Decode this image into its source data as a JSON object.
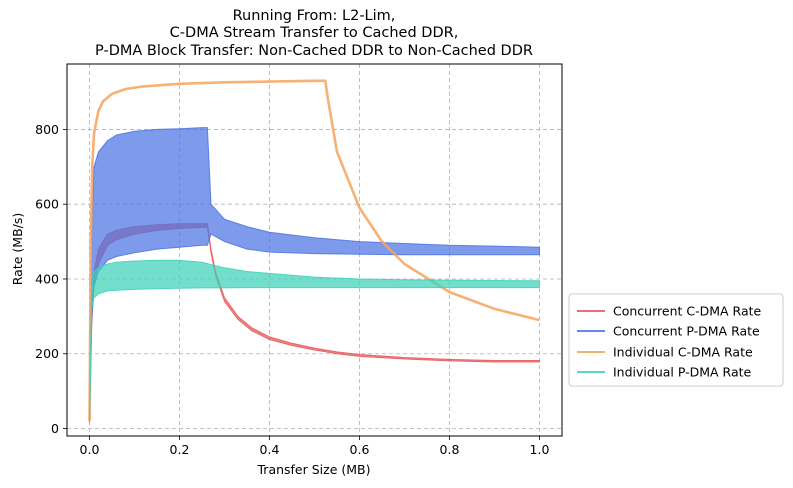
{
  "chart_data": {
    "type": "line",
    "title_lines": [
      "Running From: L2-Lim,",
      "C-DMA Stream Transfer to Cached DDR,",
      "P-DMA Block Transfer: Non-Cached DDR to Non-Cached DDR"
    ],
    "xlabel": "Transfer Size (MB)",
    "ylabel": "Rate (MB/s)",
    "xlim": [
      -0.05,
      1.05
    ],
    "ylim": [
      -20,
      975
    ],
    "xticks": [
      0.0,
      0.2,
      0.4,
      0.6,
      0.8,
      1.0
    ],
    "xtick_labels": [
      "0.0",
      "0.2",
      "0.4",
      "0.6",
      "0.8",
      "1.0"
    ],
    "yticks": [
      0,
      200,
      400,
      600,
      800
    ],
    "ytick_labels": [
      "0",
      "200",
      "400",
      "600",
      "800"
    ],
    "grid": true,
    "legend_position": "right, outside plot",
    "series": [
      {
        "name": "Concurrent C-DMA Rate",
        "color": "#e8575a",
        "x": [
          0.0,
          0.005,
          0.01,
          0.02,
          0.04,
          0.06,
          0.1,
          0.15,
          0.2,
          0.25,
          0.262,
          0.27,
          0.28,
          0.3,
          0.33,
          0.36,
          0.4,
          0.45,
          0.5,
          0.55,
          0.6,
          0.7,
          0.8,
          0.9,
          1.0
        ],
        "upper": [
          15,
          300,
          420,
          480,
          520,
          530,
          540,
          545,
          548,
          548,
          548,
          480,
          420,
          350,
          300,
          270,
          245,
          228,
          215,
          205,
          198,
          190,
          185,
          182,
          182
        ],
        "lower": [
          15,
          280,
          380,
          440,
          490,
          505,
          520,
          530,
          535,
          538,
          538,
          470,
          410,
          340,
          292,
          262,
          238,
          222,
          210,
          200,
          193,
          186,
          181,
          178,
          178
        ]
      },
      {
        "name": "Concurrent P-DMA Rate",
        "color": "#4b73e3",
        "x": [
          0.0,
          0.005,
          0.01,
          0.02,
          0.04,
          0.06,
          0.1,
          0.15,
          0.2,
          0.25,
          0.262,
          0.27,
          0.3,
          0.35,
          0.4,
          0.5,
          0.6,
          0.7,
          0.8,
          0.9,
          1.0
        ],
        "upper": [
          20,
          550,
          700,
          740,
          770,
          785,
          795,
          800,
          802,
          805,
          805,
          600,
          560,
          540,
          525,
          510,
          500,
          495,
          490,
          488,
          485
        ],
        "lower": [
          15,
          300,
          380,
          420,
          450,
          460,
          470,
          480,
          485,
          490,
          490,
          520,
          500,
          480,
          472,
          468,
          466,
          465,
          465,
          465,
          465
        ]
      },
      {
        "name": "Individual C-DMA Rate",
        "color": "#f7a35c",
        "x": [
          0.0,
          0.003,
          0.006,
          0.01,
          0.02,
          0.03,
          0.05,
          0.08,
          0.12,
          0.2,
          0.3,
          0.4,
          0.5,
          0.524,
          0.53,
          0.55,
          0.6,
          0.65,
          0.7,
          0.8,
          0.9,
          1.0
        ],
        "values": [
          20,
          500,
          700,
          790,
          850,
          875,
          895,
          908,
          915,
          922,
          926,
          928,
          930,
          930,
          880,
          740,
          590,
          500,
          440,
          365,
          320,
          290
        ]
      },
      {
        "name": "Individual P-DMA Rate",
        "color": "#3dd1b9",
        "x": [
          0.0,
          0.005,
          0.01,
          0.02,
          0.04,
          0.06,
          0.1,
          0.15,
          0.2,
          0.25,
          0.3,
          0.35,
          0.4,
          0.5,
          0.6,
          0.7,
          0.8,
          0.9,
          1.0
        ],
        "upper": [
          20,
          400,
          420,
          430,
          440,
          445,
          448,
          450,
          450,
          445,
          430,
          420,
          415,
          405,
          400,
          398,
          397,
          396,
          395
        ],
        "lower": [
          15,
          320,
          350,
          360,
          368,
          370,
          372,
          374,
          375,
          376,
          376,
          377,
          377,
          377,
          377,
          377,
          377,
          377,
          377
        ]
      }
    ]
  }
}
